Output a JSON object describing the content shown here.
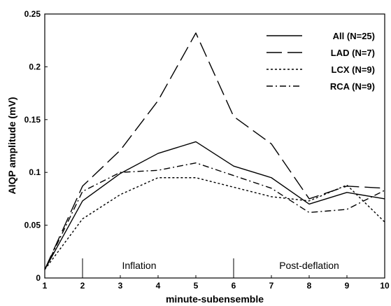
{
  "chart_data": {
    "type": "line",
    "title": "",
    "xlabel": "minute-subensemble",
    "ylabel": "AIQP amplitude (mV)",
    "xlim": [
      1,
      10
    ],
    "ylim": [
      0,
      0.25
    ],
    "x": [
      1,
      2,
      3,
      4,
      5,
      6,
      7,
      8,
      9,
      10
    ],
    "xticks": [
      "1",
      "2",
      "3",
      "4",
      "5",
      "6",
      "7",
      "8",
      "9",
      "10"
    ],
    "yticks": [
      "0",
      "0.05",
      "0.1",
      "0.15",
      "0.2",
      "0.25"
    ],
    "grid": false,
    "legend_position": "top-right",
    "series": [
      {
        "name": "All (N=25)",
        "style": "solid",
        "values": [
          0.008,
          0.073,
          0.099,
          0.118,
          0.129,
          0.106,
          0.095,
          0.07,
          0.081,
          0.075
        ]
      },
      {
        "name": "LAD (N=7)",
        "style": "long-dash",
        "values": [
          0.008,
          0.087,
          0.121,
          0.168,
          0.232,
          0.153,
          0.127,
          0.075,
          0.087,
          0.085
        ]
      },
      {
        "name": "LCX (N=9)",
        "style": "dotted",
        "values": [
          0.008,
          0.056,
          0.079,
          0.095,
          0.095,
          0.086,
          0.077,
          0.073,
          0.088,
          0.053
        ]
      },
      {
        "name": "RCA (N=9)",
        "style": "dash-dot",
        "values": [
          0.008,
          0.082,
          0.1,
          0.102,
          0.109,
          0.097,
          0.085,
          0.062,
          0.065,
          0.083
        ]
      }
    ],
    "annotations": [
      {
        "text": "Inflation",
        "x": 3.5
      },
      {
        "text": "Post-deflation",
        "x": 8
      }
    ],
    "markers_x": [
      2,
      6
    ]
  }
}
